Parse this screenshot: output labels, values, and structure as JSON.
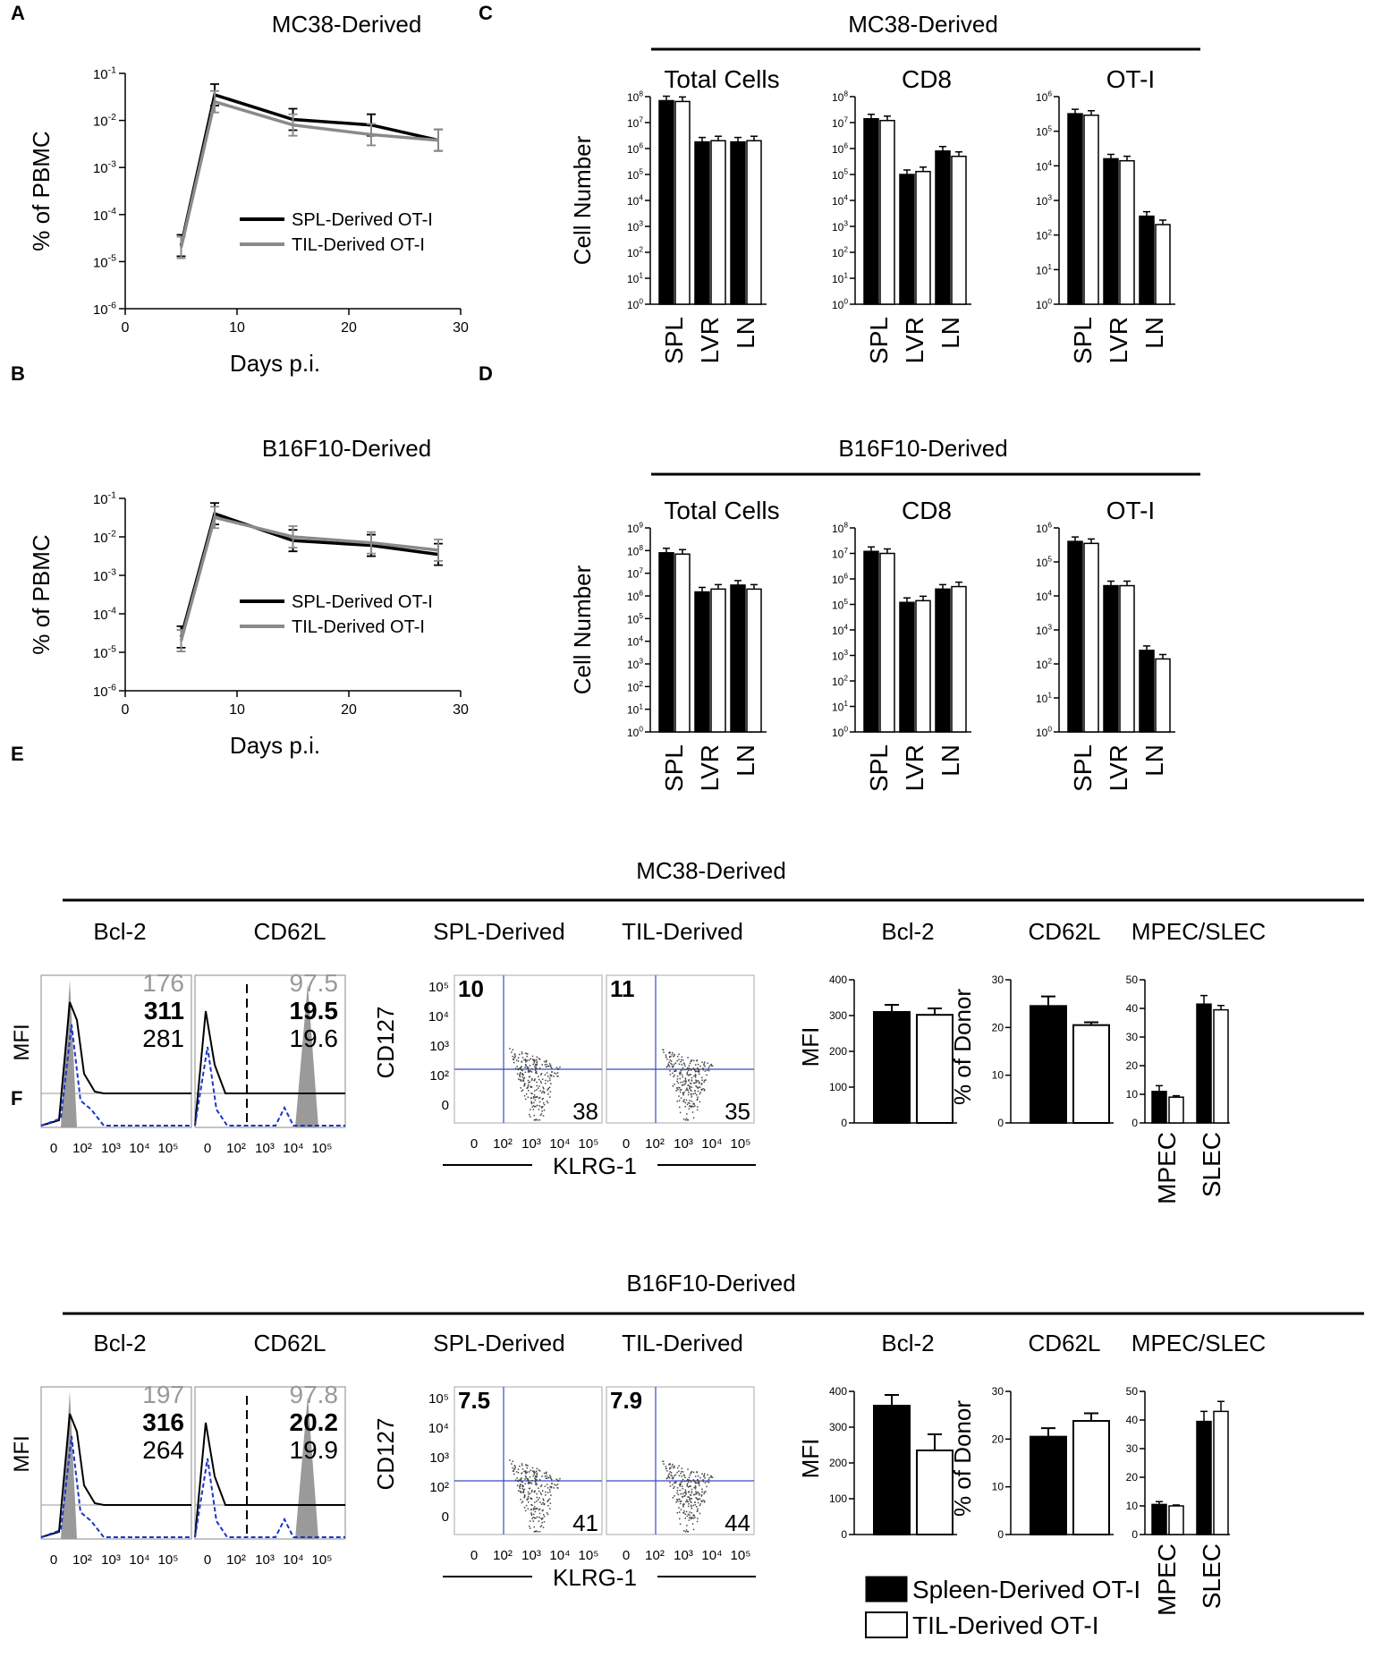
{
  "colors": {
    "spl": "#000000",
    "til_line": "#8a8a8a",
    "til_bar": "#ffffff",
    "flow_grey": "#9a9a9a",
    "flow_blue": "#1a35c8",
    "quad": "#3a49c8"
  },
  "panels": {
    "A": "A",
    "B": "B",
    "C": "C",
    "D": "D",
    "E": "E",
    "F": "F"
  },
  "chart_data": [
    {
      "id": "A",
      "type": "line",
      "title": "MC38-Derived",
      "xlabel": "Days p.i.",
      "ylabel": "% of PBMC",
      "yscale": "log",
      "ylim_exp": [
        -6,
        -1
      ],
      "xlim": [
        0,
        30
      ],
      "xticks": [
        "0",
        "10",
        "20",
        "30"
      ],
      "legend": [
        "SPL-Derived  OT-I",
        "TIL-Derived  OT-I"
      ],
      "series": [
        {
          "name": "SPL-Derived OT-I",
          "x": [
            5,
            8,
            15,
            22,
            28
          ],
          "y": [
            2.2e-05,
            0.035,
            0.0105,
            0.008,
            0.0038
          ]
        },
        {
          "name": "TIL-Derived OT-I",
          "x": [
            5,
            8,
            15,
            22,
            28
          ],
          "y": [
            2e-05,
            0.025,
            0.008,
            0.005,
            0.0038
          ]
        }
      ]
    },
    {
      "id": "B",
      "type": "line",
      "title": "B16F10-Derived",
      "xlabel": "Days p.i.",
      "ylabel": "% of PBMC",
      "yscale": "log",
      "ylim_exp": [
        -6,
        -1
      ],
      "xlim": [
        0,
        30
      ],
      "xticks": [
        "0",
        "10",
        "20",
        "30"
      ],
      "legend": [
        "SPL-Derived  OT-I",
        "TIL-Derived  OT-I"
      ],
      "series": [
        {
          "name": "SPL-Derived OT-I",
          "x": [
            5,
            8,
            15,
            22,
            28
          ],
          "y": [
            2.5e-05,
            0.04,
            0.008,
            0.006,
            0.0035
          ]
        },
        {
          "name": "TIL-Derived OT-I",
          "x": [
            5,
            8,
            15,
            22,
            28
          ],
          "y": [
            2e-05,
            0.032,
            0.01,
            0.007,
            0.0045
          ]
        }
      ]
    },
    {
      "id": "C",
      "type": "bar",
      "title": "MC38-Derived",
      "ylabel": "Cell Number",
      "yscale": "log",
      "categories": [
        "SPL",
        "LVR",
        "LN"
      ],
      "subplots": [
        {
          "title": "Total Cells",
          "max_exp": 8,
          "spl": [
            70000000.0,
            1800000.0,
            1800000.0
          ],
          "til": [
            65000000.0,
            2000000.0,
            2000000.0
          ]
        },
        {
          "title": "CD8",
          "max_exp": 8,
          "spl": [
            14000000.0,
            100000.0,
            800000.0
          ],
          "til": [
            12000000.0,
            130000.0,
            500000.0
          ]
        },
        {
          "title": "OT-I",
          "max_exp": 6,
          "spl": [
            320000.0,
            16000.0,
            350
          ],
          "til": [
            290000.0,
            14000.0,
            200
          ]
        }
      ]
    },
    {
      "id": "D",
      "type": "bar",
      "title": "B16F10-Derived",
      "ylabel": "Cell Number",
      "yscale": "log",
      "categories": [
        "SPL",
        "LVR",
        "LN"
      ],
      "subplots": [
        {
          "title": "Total Cells",
          "max_exp": 9,
          "spl": [
            80000000.0,
            1500000.0,
            3000000.0
          ],
          "til": [
            70000000.0,
            2000000.0,
            2000000.0
          ]
        },
        {
          "title": "CD8",
          "max_exp": 8,
          "spl": [
            12000000.0,
            120000.0,
            400000.0
          ],
          "til": [
            10000000.0,
            140000.0,
            500000.0
          ]
        },
        {
          "title": "OT-I",
          "max_exp": 6,
          "spl": [
            400000.0,
            20000.0,
            250
          ],
          "til": [
            350000.0,
            20000.0,
            140
          ]
        }
      ]
    },
    {
      "id": "E",
      "title": "MC38-Derived",
      "hist": {
        "ylabel": "MFI",
        "labels": [
          "Bcl-2",
          "CD62L"
        ],
        "bcl2_vals": [
          "176",
          "311",
          "281"
        ],
        "cd62l_vals": [
          "97.5",
          "19.5",
          "19.6"
        ]
      },
      "dots": {
        "ylabel": "CD127",
        "xlabel": "KLRG-1",
        "labels": [
          "SPL-Derived",
          "TIL-Derived"
        ],
        "top": [
          "10",
          "11"
        ],
        "bottom": [
          "38",
          "35"
        ]
      },
      "bars": [
        {
          "title": "Bcl-2",
          "ylabel": "MFI",
          "ymax": 400,
          "ticks": [
            "0",
            "100",
            "200",
            "300",
            "400"
          ],
          "spl": 310,
          "til": 302,
          "spl_err": 20,
          "til_err": 18
        },
        {
          "title": "CD62L",
          "ylabel": "% of Donor",
          "ymax": 30,
          "ticks": [
            "0",
            "10",
            "20",
            "30"
          ],
          "spl": 24.5,
          "til": 20.5,
          "spl_err": 2,
          "til_err": 0.6
        },
        {
          "title": "MPEC/SLEC",
          "ymax": 50,
          "ticks": [
            "0",
            "10",
            "20",
            "30",
            "40",
            "50"
          ],
          "categories": [
            "MPEC",
            "SLEC"
          ],
          "spl": [
            11,
            41.5
          ],
          "til": [
            9,
            39.5
          ],
          "spl_err": [
            2,
            3
          ],
          "til_err": [
            0.5,
            1.5
          ]
        }
      ]
    },
    {
      "id": "F",
      "title": "B16F10-Derived",
      "hist": {
        "ylabel": "MFI",
        "labels": [
          "Bcl-2",
          "CD62L"
        ],
        "bcl2_vals": [
          "197",
          "316",
          "264"
        ],
        "cd62l_vals": [
          "97.8",
          "20.2",
          "19.9"
        ]
      },
      "dots": {
        "ylabel": "CD127",
        "xlabel": "KLRG-1",
        "labels": [
          "SPL-Derived",
          "TIL-Derived"
        ],
        "top": [
          "7.5",
          "7.9"
        ],
        "bottom": [
          "41",
          "44"
        ]
      },
      "bars": [
        {
          "title": "Bcl-2",
          "ylabel": "MFI",
          "ymax": 400,
          "ticks": [
            "0",
            "100",
            "200",
            "300",
            "400"
          ],
          "spl": 360,
          "til": 235,
          "spl_err": 30,
          "til_err": 45
        },
        {
          "title": "CD62L",
          "ylabel": "% of Donor",
          "ymax": 30,
          "ticks": [
            "0",
            "10",
            "20",
            "30"
          ],
          "spl": 20.5,
          "til": 23.8,
          "spl_err": 1.8,
          "til_err": 1.6
        },
        {
          "title": "MPEC/SLEC",
          "ymax": 50,
          "ticks": [
            "0",
            "10",
            "20",
            "30",
            "40",
            "50"
          ],
          "categories": [
            "MPEC",
            "SLEC"
          ],
          "spl": [
            10.5,
            39.5
          ],
          "til": [
            10,
            43
          ],
          "spl_err": [
            1,
            3.5
          ],
          "til_err": [
            0.3,
            3.5
          ]
        }
      ]
    }
  ],
  "legend": {
    "spl": "Spleen-Derived OT-I",
    "til": "TIL-Derived OT-I"
  },
  "hist_axis_ticks": [
    "0",
    "10²",
    "10³",
    "10⁴",
    "10⁵"
  ],
  "dot_y_ticks": [
    "10⁵",
    "10⁴",
    "10³",
    "10²",
    "0"
  ]
}
